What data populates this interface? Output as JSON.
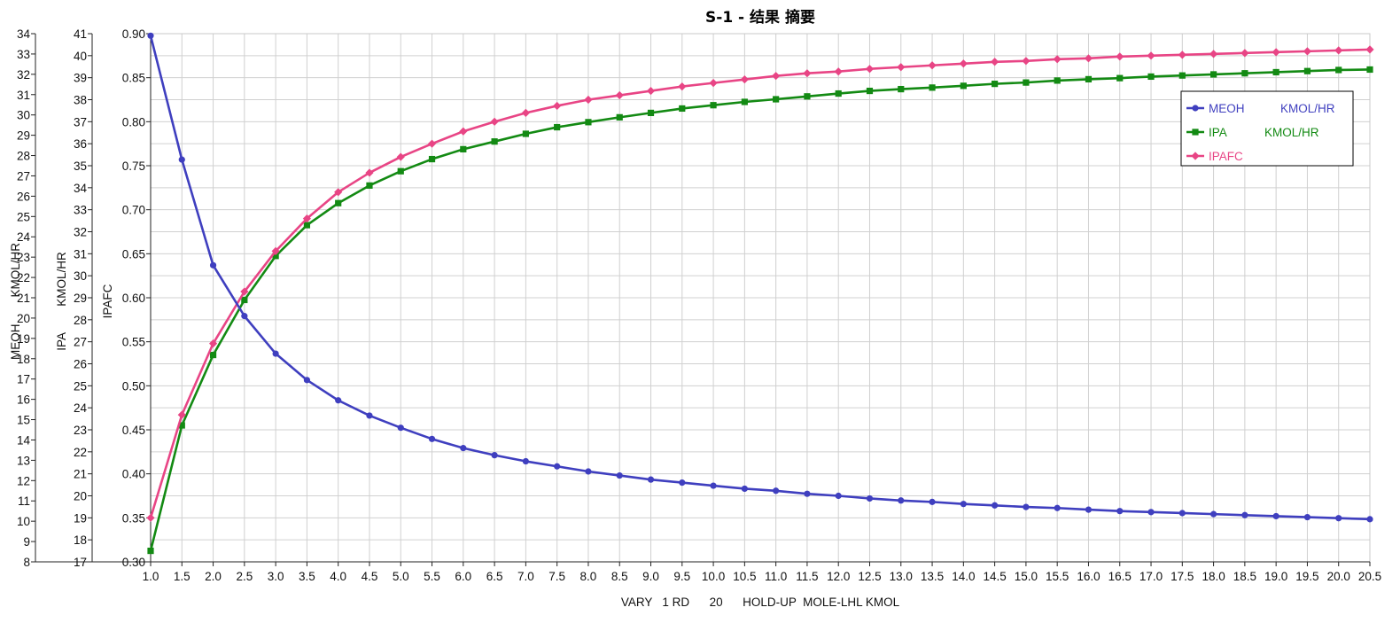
{
  "chart_data": {
    "type": "line",
    "title": "S-1 - 结果 摘要",
    "xlabel": "VARY   1 RD      20      HOLD-UP  MOLE-LHL KMOL",
    "x": [
      1.0,
      1.5,
      2.0,
      2.5,
      3.0,
      3.5,
      4.0,
      4.5,
      5.0,
      5.5,
      6.0,
      6.5,
      7.0,
      7.5,
      8.0,
      8.5,
      9.0,
      9.5,
      10.0,
      10.5,
      11.0,
      11.5,
      12.0,
      12.5,
      13.0,
      13.5,
      14.0,
      14.5,
      15.0,
      15.5,
      16.0,
      16.5,
      17.0,
      17.5,
      18.0,
      18.5,
      19.0,
      19.5,
      20.0,
      20.5
    ],
    "xlim": [
      1.0,
      20.5
    ],
    "x_ticks": [
      "1.0",
      "1.5",
      "2.0",
      "2.5",
      "3.0",
      "3.5",
      "4.0",
      "4.5",
      "5.0",
      "5.5",
      "6.0",
      "6.5",
      "7.0",
      "7.5",
      "8.0",
      "8.5",
      "9.0",
      "9.5",
      "10.0",
      "10.5",
      "11.0",
      "11.5",
      "12.0",
      "12.5",
      "13.0",
      "13.5",
      "14.0",
      "14.5",
      "15.0",
      "15.5",
      "16.0",
      "16.5",
      "17.0",
      "17.5",
      "18.0",
      "18.5",
      "19.0",
      "19.5",
      "20.0",
      "20.5"
    ],
    "grid": true,
    "legend_position": "top-right",
    "axes": [
      {
        "id": "meoh",
        "label": "MEOH        KMOL/HR",
        "ylim": [
          8,
          34
        ],
        "ticks": [
          "8",
          "9",
          "10",
          "11",
          "12",
          "13",
          "14",
          "15",
          "16",
          "17",
          "18",
          "19",
          "20",
          "21",
          "22",
          "23",
          "24",
          "25",
          "26",
          "27",
          "28",
          "29",
          "30",
          "31",
          "32",
          "33",
          "34"
        ]
      },
      {
        "id": "ipa",
        "label": "IPA        KMOL/HR",
        "ylim": [
          17,
          41
        ],
        "ticks": [
          "17",
          "18",
          "19",
          "20",
          "21",
          "22",
          "23",
          "24",
          "25",
          "26",
          "27",
          "28",
          "29",
          "30",
          "31",
          "32",
          "33",
          "34",
          "35",
          "36",
          "37",
          "38",
          "39",
          "40",
          "41"
        ]
      },
      {
        "id": "ipafc",
        "label": "IPAFC",
        "ylim": [
          0.3,
          0.9
        ],
        "ticks": [
          "0.30",
          "0.35",
          "0.40",
          "0.45",
          "0.50",
          "0.55",
          "0.60",
          "0.65",
          "0.70",
          "0.75",
          "0.80",
          "0.85",
          "0.90"
        ]
      }
    ],
    "series": [
      {
        "name": "MEOH",
        "unit": "KMOL/HR",
        "axis": "meoh",
        "color": "#3f3fbf",
        "marker": "circle",
        "values": [
          33.9,
          27.8,
          22.6,
          20.1,
          18.25,
          16.95,
          15.95,
          15.2,
          14.6,
          14.05,
          13.6,
          13.25,
          12.95,
          12.7,
          12.45,
          12.25,
          12.05,
          11.9,
          11.75,
          11.6,
          11.5,
          11.35,
          11.25,
          11.12,
          11.02,
          10.95,
          10.85,
          10.78,
          10.7,
          10.65,
          10.57,
          10.5,
          10.45,
          10.4,
          10.35,
          10.3,
          10.25,
          10.2,
          10.15,
          10.1
        ]
      },
      {
        "name": "IPA",
        "unit": "KMOL/HR",
        "axis": "ipa",
        "color": "#138a13",
        "marker": "square",
        "values": [
          17.5,
          23.2,
          26.4,
          28.9,
          30.9,
          32.3,
          33.3,
          34.1,
          34.75,
          35.3,
          35.75,
          36.1,
          36.45,
          36.75,
          36.98,
          37.2,
          37.4,
          37.6,
          37.75,
          37.9,
          38.02,
          38.15,
          38.28,
          38.4,
          38.48,
          38.55,
          38.63,
          38.72,
          38.78,
          38.87,
          38.93,
          38.98,
          39.05,
          39.1,
          39.15,
          39.2,
          39.25,
          39.3,
          39.35,
          39.37
        ]
      },
      {
        "name": "IPAFC",
        "unit": "",
        "axis": "ipafc",
        "color": "#e84585",
        "marker": "diamond",
        "values": [
          0.35,
          0.467,
          0.548,
          0.607,
          0.653,
          0.69,
          0.72,
          0.742,
          0.76,
          0.775,
          0.789,
          0.8,
          0.81,
          0.818,
          0.825,
          0.83,
          0.835,
          0.84,
          0.844,
          0.848,
          0.852,
          0.855,
          0.857,
          0.86,
          0.862,
          0.864,
          0.866,
          0.868,
          0.869,
          0.871,
          0.872,
          0.874,
          0.875,
          0.876,
          0.877,
          0.878,
          0.879,
          0.88,
          0.881,
          0.882
        ]
      }
    ]
  }
}
